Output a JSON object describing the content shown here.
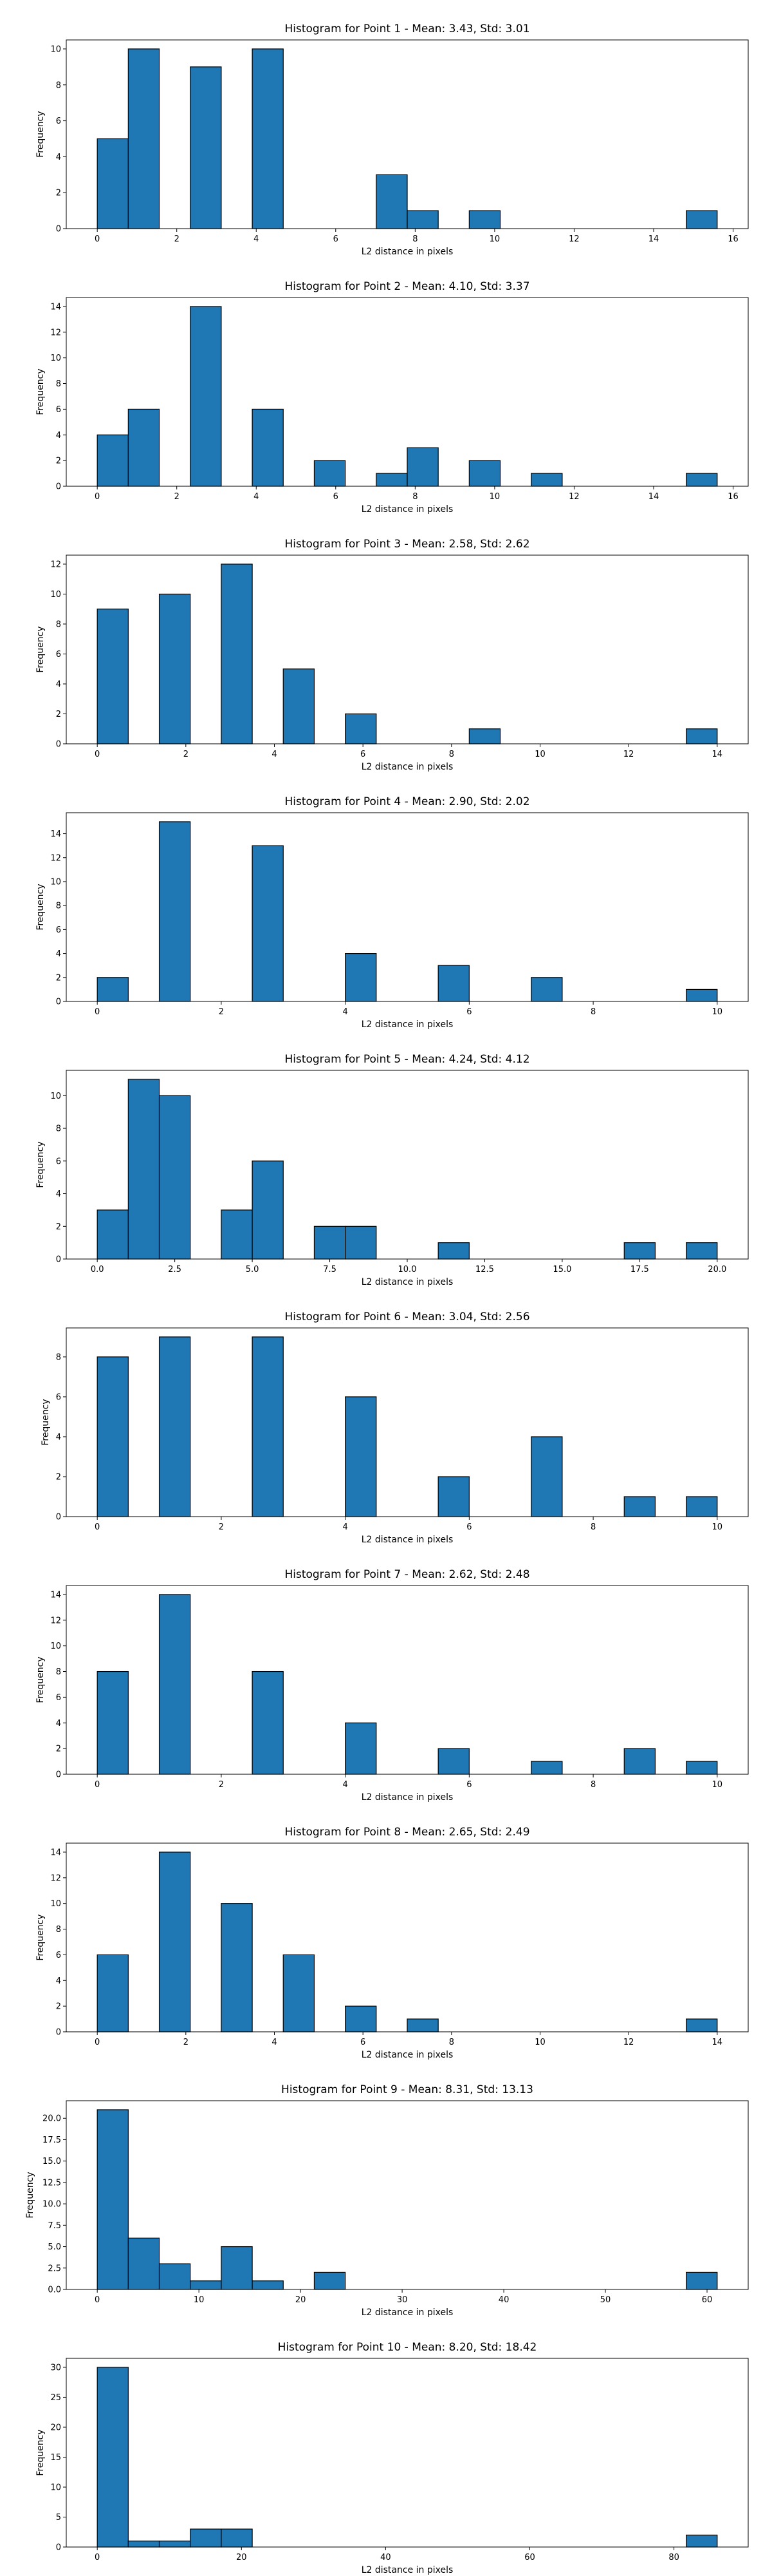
{
  "chart_data": [
    {
      "type": "bar",
      "title": "Histogram for Point 1 - Mean: 3.43, Std: 3.01",
      "xlabel": "L2 distance in pixels",
      "ylabel": "Frequency",
      "xlim": [
        -0.78,
        16.38
      ],
      "ylim": [
        0,
        10.5
      ],
      "xticks": [
        0,
        2,
        4,
        6,
        8,
        10,
        12,
        14,
        16
      ],
      "xtick_labels": [
        "0",
        "2",
        "4",
        "6",
        "8",
        "10",
        "12",
        "14",
        "16"
      ],
      "yticks": [
        0,
        2,
        4,
        6,
        8,
        10
      ],
      "ytick_labels": [
        "0",
        "2",
        "4",
        "6",
        "8",
        "10"
      ],
      "bin_edges": [
        0.0,
        0.78,
        1.56,
        2.34,
        3.12,
        3.9,
        4.68,
        5.46,
        6.24,
        7.02,
        7.8,
        8.58,
        9.36,
        10.14,
        10.92,
        11.7,
        12.48,
        13.26,
        14.04,
        14.82,
        15.6
      ],
      "values": [
        5,
        10,
        0,
        9,
        0,
        10,
        0,
        0,
        0,
        3,
        1,
        0,
        1,
        0,
        0,
        0,
        0,
        0,
        0,
        1
      ]
    },
    {
      "type": "bar",
      "title": "Histogram for Point 2 - Mean: 4.10, Std: 3.37",
      "xlabel": "L2 distance in pixels",
      "ylabel": "Frequency",
      "xlim": [
        -0.78,
        16.38
      ],
      "ylim": [
        0,
        14.7
      ],
      "xticks": [
        0,
        2,
        4,
        6,
        8,
        10,
        12,
        14,
        16
      ],
      "xtick_labels": [
        "0",
        "2",
        "4",
        "6",
        "8",
        "10",
        "12",
        "14",
        "16"
      ],
      "yticks": [
        0,
        2,
        4,
        6,
        8,
        10,
        12,
        14
      ],
      "ytick_labels": [
        "0",
        "2",
        "4",
        "6",
        "8",
        "10",
        "12",
        "14"
      ],
      "bin_edges": [
        0.0,
        0.78,
        1.56,
        2.34,
        3.12,
        3.9,
        4.68,
        5.46,
        6.24,
        7.02,
        7.8,
        8.58,
        9.36,
        10.14,
        10.92,
        11.7,
        12.48,
        13.26,
        14.04,
        14.82,
        15.6
      ],
      "values": [
        4,
        6,
        0,
        14,
        0,
        6,
        0,
        2,
        0,
        1,
        3,
        0,
        2,
        0,
        1,
        0,
        0,
        0,
        0,
        1
      ]
    },
    {
      "type": "bar",
      "title": "Histogram for Point 3 - Mean: 2.58, Std: 2.62",
      "xlabel": "L2 distance in pixels",
      "ylabel": "Frequency",
      "xlim": [
        -0.7,
        14.7
      ],
      "ylim": [
        0,
        12.6
      ],
      "xticks": [
        0,
        2,
        4,
        6,
        8,
        10,
        12,
        14
      ],
      "xtick_labels": [
        "0",
        "2",
        "4",
        "6",
        "8",
        "10",
        "12",
        "14"
      ],
      "yticks": [
        0,
        2,
        4,
        6,
        8,
        10,
        12
      ],
      "ytick_labels": [
        "0",
        "2",
        "4",
        "6",
        "8",
        "10",
        "12"
      ],
      "bin_edges": [
        0.0,
        0.7,
        1.4,
        2.1,
        2.8,
        3.5,
        4.2,
        4.9,
        5.6,
        6.3,
        7.0,
        7.7,
        8.4,
        9.1,
        9.8,
        10.5,
        11.2,
        11.9,
        12.6,
        13.3,
        14.0
      ],
      "values": [
        9,
        0,
        10,
        0,
        12,
        0,
        5,
        0,
        2,
        0,
        0,
        0,
        1,
        0,
        0,
        0,
        0,
        0,
        0,
        1
      ]
    },
    {
      "type": "bar",
      "title": "Histogram for Point 4 - Mean: 2.90, Std: 2.02",
      "xlabel": "L2 distance in pixels",
      "ylabel": "Frequency",
      "xlim": [
        -0.5,
        10.5
      ],
      "ylim": [
        0,
        15.75
      ],
      "xticks": [
        0,
        2,
        4,
        6,
        8,
        10
      ],
      "xtick_labels": [
        "0",
        "2",
        "4",
        "6",
        "8",
        "10"
      ],
      "yticks": [
        0,
        2,
        4,
        6,
        8,
        10,
        12,
        14
      ],
      "ytick_labels": [
        "0",
        "2",
        "4",
        "6",
        "8",
        "10",
        "12",
        "14"
      ],
      "bin_edges": [
        0.0,
        0.5,
        1.0,
        1.5,
        2.0,
        2.5,
        3.0,
        3.5,
        4.0,
        4.5,
        5.0,
        5.5,
        6.0,
        6.5,
        7.0,
        7.5,
        8.0,
        8.5,
        9.0,
        9.5,
        10.0
      ],
      "values": [
        2,
        0,
        15,
        0,
        0,
        13,
        0,
        0,
        4,
        0,
        0,
        3,
        0,
        0,
        2,
        0,
        0,
        0,
        0,
        1
      ]
    },
    {
      "type": "bar",
      "title": "Histogram for Point 5 - Mean: 4.24, Std: 4.12",
      "xlabel": "L2 distance in pixels",
      "ylabel": "Frequency",
      "xlim": [
        -1.0,
        21.0
      ],
      "ylim": [
        0,
        11.55
      ],
      "xticks": [
        0.0,
        2.5,
        5.0,
        7.5,
        10.0,
        12.5,
        15.0,
        17.5,
        20.0
      ],
      "xtick_labels": [
        "0.0",
        "2.5",
        "5.0",
        "7.5",
        "10.0",
        "12.5",
        "15.0",
        "17.5",
        "20.0"
      ],
      "yticks": [
        0,
        2,
        4,
        6,
        8,
        10
      ],
      "ytick_labels": [
        "0",
        "2",
        "4",
        "6",
        "8",
        "10"
      ],
      "bin_edges": [
        0.0,
        1.0,
        2.0,
        3.0,
        4.0,
        5.0,
        6.0,
        7.0,
        8.0,
        9.0,
        10.0,
        11.0,
        12.0,
        13.0,
        14.0,
        15.0,
        16.0,
        17.0,
        18.0,
        19.0,
        20.0
      ],
      "values": [
        3,
        11,
        10,
        0,
        3,
        6,
        0,
        2,
        2,
        0,
        0,
        1,
        0,
        0,
        0,
        0,
        0,
        1,
        0,
        1
      ]
    },
    {
      "type": "bar",
      "title": "Histogram for Point 6 - Mean: 3.04, Std: 2.56",
      "xlabel": "L2 distance in pixels",
      "ylabel": "Frequency",
      "xlim": [
        -0.5,
        10.5
      ],
      "ylim": [
        0,
        9.45
      ],
      "xticks": [
        0,
        2,
        4,
        6,
        8,
        10
      ],
      "xtick_labels": [
        "0",
        "2",
        "4",
        "6",
        "8",
        "10"
      ],
      "yticks": [
        0,
        2,
        4,
        6,
        8
      ],
      "ytick_labels": [
        "0",
        "2",
        "4",
        "6",
        "8"
      ],
      "bin_edges": [
        0.0,
        0.5,
        1.0,
        1.5,
        2.0,
        2.5,
        3.0,
        3.5,
        4.0,
        4.5,
        5.0,
        5.5,
        6.0,
        6.5,
        7.0,
        7.5,
        8.0,
        8.5,
        9.0,
        9.5,
        10.0
      ],
      "values": [
        8,
        0,
        9,
        0,
        0,
        9,
        0,
        0,
        6,
        0,
        0,
        2,
        0,
        0,
        4,
        0,
        0,
        1,
        0,
        1
      ]
    },
    {
      "type": "bar",
      "title": "Histogram for Point 7 - Mean: 2.62, Std: 2.48",
      "xlabel": "L2 distance in pixels",
      "ylabel": "Frequency",
      "xlim": [
        -0.5,
        10.5
      ],
      "ylim": [
        0,
        14.7
      ],
      "xticks": [
        0,
        2,
        4,
        6,
        8,
        10
      ],
      "xtick_labels": [
        "0",
        "2",
        "4",
        "6",
        "8",
        "10"
      ],
      "yticks": [
        0,
        2,
        4,
        6,
        8,
        10,
        12,
        14
      ],
      "ytick_labels": [
        "0",
        "2",
        "4",
        "6",
        "8",
        "10",
        "12",
        "14"
      ],
      "bin_edges": [
        0.0,
        0.5,
        1.0,
        1.5,
        2.0,
        2.5,
        3.0,
        3.5,
        4.0,
        4.5,
        5.0,
        5.5,
        6.0,
        6.5,
        7.0,
        7.5,
        8.0,
        8.5,
        9.0,
        9.5,
        10.0
      ],
      "values": [
        8,
        0,
        14,
        0,
        0,
        8,
        0,
        0,
        4,
        0,
        0,
        2,
        0,
        0,
        1,
        0,
        0,
        2,
        0,
        1
      ]
    },
    {
      "type": "bar",
      "title": "Histogram for Point 8 - Mean: 2.65, Std: 2.49",
      "xlabel": "L2 distance in pixels",
      "ylabel": "Frequency",
      "xlim": [
        -0.7,
        14.7
      ],
      "ylim": [
        0,
        14.7
      ],
      "xticks": [
        0,
        2,
        4,
        6,
        8,
        10,
        12,
        14
      ],
      "xtick_labels": [
        "0",
        "2",
        "4",
        "6",
        "8",
        "10",
        "12",
        "14"
      ],
      "yticks": [
        0,
        2,
        4,
        6,
        8,
        10,
        12,
        14
      ],
      "ytick_labels": [
        "0",
        "2",
        "4",
        "6",
        "8",
        "10",
        "12",
        "14"
      ],
      "bin_edges": [
        0.0,
        0.7,
        1.4,
        2.1,
        2.8,
        3.5,
        4.2,
        4.9,
        5.6,
        6.3,
        7.0,
        7.7,
        8.4,
        9.1,
        9.8,
        10.5,
        11.2,
        11.9,
        12.6,
        13.3,
        14.0
      ],
      "values": [
        6,
        0,
        14,
        0,
        10,
        0,
        6,
        0,
        2,
        0,
        1,
        0,
        0,
        0,
        0,
        0,
        0,
        0,
        0,
        1
      ]
    },
    {
      "type": "bar",
      "title": "Histogram for Point 9 - Mean: 8.31, Std: 13.13",
      "xlabel": "L2 distance in pixels",
      "ylabel": "Frequency",
      "xlim": [
        -3.05,
        64.05
      ],
      "ylim": [
        0,
        22.05
      ],
      "xticks": [
        0,
        10,
        20,
        30,
        40,
        50,
        60
      ],
      "xtick_labels": [
        "0",
        "10",
        "20",
        "30",
        "40",
        "50",
        "60"
      ],
      "yticks": [
        0.0,
        2.5,
        5.0,
        7.5,
        10.0,
        12.5,
        15.0,
        17.5,
        20.0
      ],
      "ytick_labels": [
        "0.0",
        "2.5",
        "5.0",
        "7.5",
        "10.0",
        "12.5",
        "15.0",
        "17.5",
        "20.0"
      ],
      "bin_edges": [
        0.0,
        3.05,
        6.1,
        9.15,
        12.2,
        15.25,
        18.3,
        21.35,
        24.4,
        27.45,
        30.5,
        33.55,
        36.6,
        39.65,
        42.7,
        45.75,
        48.8,
        51.85,
        54.9,
        57.95,
        61.0
      ],
      "values": [
        21,
        6,
        3,
        1,
        5,
        1,
        0,
        2,
        0,
        0,
        0,
        0,
        0,
        0,
        0,
        0,
        0,
        0,
        0,
        2
      ]
    },
    {
      "type": "bar",
      "title": "Histogram for Point 10 - Mean: 8.20, Std: 18.42",
      "xlabel": "L2 distance in pixels",
      "ylabel": "Frequency",
      "xlim": [
        -4.3,
        90.3
      ],
      "ylim": [
        0,
        31.5
      ],
      "xticks": [
        0,
        20,
        40,
        60,
        80
      ],
      "xtick_labels": [
        "0",
        "20",
        "40",
        "60",
        "80"
      ],
      "yticks": [
        0,
        5,
        10,
        15,
        20,
        25,
        30
      ],
      "ytick_labels": [
        "0",
        "5",
        "10",
        "15",
        "20",
        "25",
        "30"
      ],
      "bin_edges": [
        0.0,
        4.3,
        8.6,
        12.9,
        17.2,
        21.5,
        25.8,
        30.1,
        34.4,
        38.7,
        43.0,
        47.3,
        51.6,
        55.9,
        60.2,
        64.5,
        68.8,
        73.1,
        77.4,
        81.7,
        86.0
      ],
      "values": [
        30,
        1,
        1,
        3,
        3,
        0,
        0,
        0,
        0,
        0,
        0,
        0,
        0,
        0,
        0,
        0,
        0,
        0,
        0,
        2
      ]
    }
  ]
}
